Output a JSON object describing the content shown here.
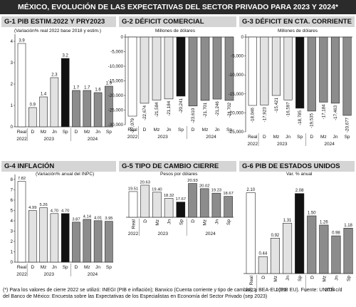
{
  "header": {
    "title": "MÉXICO, EVOLUCIÓN DE LAS EXPECTATIVAS DEL SECTOR PRIVADO PARA 2023 Y 2024*"
  },
  "colors": {
    "real": "#ffffff",
    "y2023": "#e2e2e2",
    "y2024": "#8c8c8c",
    "dark": "#111111",
    "header_bg": "#2b2b2b",
    "panel_title_bg": "#d5d5d5"
  },
  "chart_data": [
    {
      "type": "bar",
      "id": "G-1",
      "title": "G-1  PIB ESTIM.2022 Y PRY2023",
      "subtitle": "(Variación% real 2022 base 2018 y estim.)",
      "categories": [
        "Real",
        "D",
        "Mz",
        "Jn",
        "Sp",
        "D",
        "Mz",
        "Jn",
        "Sp"
      ],
      "groups": [
        "2022",
        "2023",
        "2024"
      ],
      "values": [
        3.9,
        0.9,
        1.4,
        2.3,
        3.2,
        1.7,
        1.7,
        1.6,
        1.9
      ],
      "labels": [
        "3.9",
        "0.9",
        "1.4",
        "2.3",
        "3.2",
        "1.7",
        "1.7",
        "1.6",
        "1.9"
      ],
      "yticks": [
        "0",
        "1",
        "2",
        "3",
        "4"
      ],
      "ylim": [
        0,
        4.2
      ]
    },
    {
      "type": "bar",
      "id": "G-2",
      "title": "G-2  DÉFICIT COMERCIAL",
      "subtitle": "Millones de dólares",
      "categories": [
        "Real",
        "D",
        "Mz",
        "Jn",
        "Sp",
        "D",
        "Mz",
        "Jn",
        "Sp"
      ],
      "groups": [
        "2022",
        "2023",
        "2024"
      ],
      "values": [
        -27079,
        -22674,
        -21584,
        -21184,
        -20241,
        -23610,
        -21701,
        -21246,
        -21702
      ],
      "labels": [
        "-27,079",
        "-22,674",
        "-21,584",
        "-21,184",
        "-20,241",
        "-23,610",
        "-21,701",
        "-21,246",
        "-21,702"
      ],
      "yticks": [
        "0",
        "-5,000",
        "-10,000",
        "-15,000",
        "-20,000",
        "-25,000",
        "-30,000"
      ],
      "ylim": [
        -30000,
        0
      ]
    },
    {
      "type": "bar",
      "id": "G-3",
      "title": "G-3  DÉFICIT EN CTA. CORRIENTE",
      "subtitle": "Millones de dólares",
      "categories": [
        "Real",
        "D",
        "Mz",
        "Jn",
        "Sp",
        "D",
        "Mz",
        "Jn",
        "Sp"
      ],
      "groups": [
        "2022",
        "2023",
        "2024"
      ],
      "values": [
        -18046,
        -17923,
        -15421,
        -16597,
        -18785,
        -19535,
        -17184,
        -17463,
        -20677
      ],
      "labels": [
        "-18,046",
        "-17,923",
        "-15,421",
        "-16,597",
        "-18,785",
        "-19,535",
        "-17,184",
        "-17,463",
        "-20,677"
      ],
      "yticks": [
        "0",
        "-5,000",
        "-10,000",
        "-15,000",
        "-20,000",
        "-25,000"
      ],
      "ylim": [
        -25000,
        0
      ]
    },
    {
      "type": "bar",
      "id": "G-4",
      "title": "G-4  INFLACIÓN",
      "subtitle": "(Variación% anual del INPC)",
      "categories": [
        "Real",
        "D",
        "Mz",
        "Jn",
        "Sp",
        "D",
        "Mz",
        "Jn",
        "Sp"
      ],
      "groups": [
        "2022",
        "2023",
        "2024"
      ],
      "values": [
        7.82,
        4.99,
        5.26,
        4.7,
        4.7,
        3.87,
        4.14,
        4.01,
        3.95
      ],
      "labels": [
        "7.82",
        "4.99",
        "5.26",
        "4.70",
        "4.70",
        "3.87",
        "4.14",
        "4.01",
        "3.95"
      ],
      "yticks": [
        "0",
        "1",
        "2",
        "3",
        "4",
        "5",
        "6",
        "7",
        "8"
      ],
      "ylim": [
        0,
        8.2
      ]
    },
    {
      "type": "bar",
      "id": "G-5",
      "title": "G-5  TIPO DE CAMBIO CIERRE",
      "subtitle": "Pesos por dólares",
      "categories": [
        "Real",
        "D",
        "Mz",
        "Jn",
        "Sp",
        "D",
        "Mz",
        "Jn",
        "Sp"
      ],
      "groups": [
        "2022",
        "2023",
        "2024"
      ],
      "values": [
        19.51,
        20.63,
        19.4,
        18.32,
        17.67,
        20.93,
        20.02,
        19.23,
        18.67
      ],
      "labels": [
        "19.51",
        "20.63",
        "19.40",
        "18.32",
        "17.67",
        "20.93",
        "20.02",
        "19.23",
        "18.67"
      ],
      "ylim": [
        0,
        22
      ]
    },
    {
      "type": "bar",
      "id": "G-6",
      "title": "G-6  PIB DE ESTADOS UNIDOS",
      "subtitle": "Var. % anual",
      "categories": [
        "Real",
        "D",
        "Mz",
        "Jn",
        "Sp",
        "D",
        "Mz",
        "Jn",
        "Sp"
      ],
      "groups": [
        "2022",
        "2023",
        "2024"
      ],
      "values": [
        2.1,
        0.44,
        0.92,
        1.31,
        2.08,
        1.5,
        1.26,
        0.98,
        1.18
      ],
      "labels": [
        "2.10",
        "0.44",
        "0.92",
        "1.31",
        "2.08",
        "1.50",
        "1.26",
        "0.98",
        "1.18"
      ],
      "ylim": [
        0,
        2.5
      ]
    }
  ],
  "footer": {
    "line1": "(*) Para los valores de cierre 2022 se utilizó: INEGI (PIB e inflación); Banxico (Cuenta corriente y tipo de cambio); y BEA-EU (PIB EU). Fuente: UNITÉ c/d",
    "line2": "del Banco de México: Encuesta sobre las Expectativas de los Especialistas en Economía del Sector Privado (sep 2023)"
  }
}
